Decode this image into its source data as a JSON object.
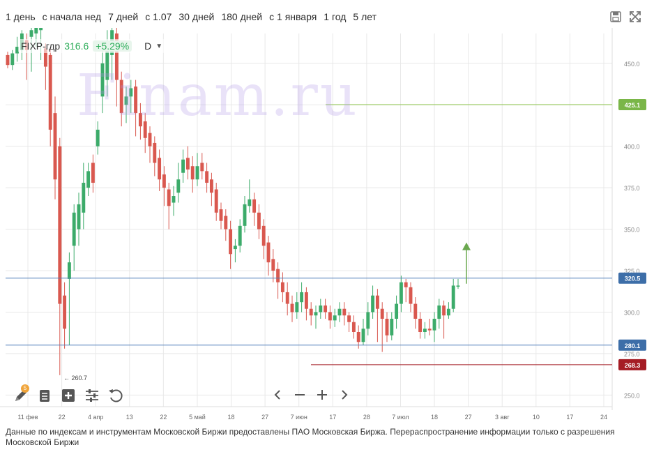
{
  "periods": [
    "1 день",
    "с начала нед",
    "7 дней",
    "с 1.07",
    "30 дней",
    "180 дней",
    "с 1 января",
    "1 год",
    "5 лет"
  ],
  "legend": {
    "symbol": "FIXP-гдр",
    "price": "316.6",
    "change": "+5.29%",
    "timeframe": "D"
  },
  "watermark": "Finam.ru",
  "footer": "Данные по индексам и инструментам Московской Биржи предоставлены ПАО Московская Биржа. Перераспространение информации только с разрешения Московской Биржи",
  "colors": {
    "up": "#3cab6a",
    "down": "#d9584f",
    "grid": "#e8e8e8",
    "hline_blue": "#4f7cb8",
    "hline_green": "#8bc34a",
    "hline_red": "#a51c24",
    "arrow": "#6aa84f"
  },
  "icons": {
    "save": "floppy-disk-icon",
    "expand": "fullscreen-icon",
    "pencil": "pencil-icon",
    "list": "list-icon",
    "add": "add-indicator-icon",
    "settings": "sliders-icon",
    "reset": "undo-icon",
    "prev": "chevron-left-icon",
    "zoom_out": "minus-icon",
    "zoom_in": "plus-icon",
    "next": "chevron-right-icon"
  },
  "tool_badge": "5",
  "chart_data": {
    "type": "candlestick",
    "ylim": [
      243,
      468
    ],
    "y_ticks": [
      "250.0",
      "275.0",
      "300.0",
      "325.0",
      "350.0",
      "375.0",
      "400.0",
      "425.0",
      "450.0"
    ],
    "x_ticks": [
      "11 фев",
      "22",
      "4 апр",
      "13",
      "22",
      "5 май",
      "18",
      "27",
      "7 июн",
      "17",
      "28",
      "7 июл",
      "18",
      "27",
      "3 авг",
      "10",
      "17",
      "24"
    ],
    "price_lines": [
      {
        "value": 425.1,
        "label": "425.1",
        "style": "green"
      },
      {
        "value": 320.5,
        "label": "320.5",
        "style": "blue"
      },
      {
        "value": 280.1,
        "label": "280.1",
        "style": "blue"
      },
      {
        "value": 268.3,
        "label": "268.3",
        "style": "red"
      }
    ],
    "low_annotation": {
      "value": 260.7,
      "label": "← 260.7"
    },
    "candles": [
      [
        455,
        449,
        457,
        447
      ],
      [
        449,
        456,
        458,
        446
      ],
      [
        456,
        460,
        466,
        451
      ],
      [
        458,
        468,
        470,
        452
      ],
      [
        464,
        458,
        468,
        440
      ],
      [
        466,
        470,
        475,
        445
      ],
      [
        468,
        474,
        480,
        460
      ],
      [
        470,
        475,
        478,
        452
      ],
      [
        459,
        448,
        462,
        434
      ],
      [
        455,
        410,
        460,
        400
      ],
      [
        420,
        380,
        430,
        368
      ],
      [
        400,
        305,
        405,
        262
      ],
      [
        310,
        290,
        318,
        278
      ],
      [
        320,
        330,
        336,
        280
      ],
      [
        340,
        360,
        365,
        325
      ],
      [
        350,
        365,
        372,
        340
      ],
      [
        360,
        378,
        390,
        350
      ],
      [
        375,
        385,
        390,
        370
      ],
      [
        390,
        378,
        395,
        372
      ],
      [
        400,
        410,
        415,
        395
      ],
      [
        430,
        450,
        460,
        420
      ],
      [
        440,
        460,
        470,
        430
      ],
      [
        455,
        470,
        480,
        440
      ],
      [
        468,
        440,
        472,
        424
      ],
      [
        440,
        420,
        445,
        412
      ],
      [
        425,
        430,
        436,
        414
      ],
      [
        430,
        435,
        440,
        420
      ],
      [
        436,
        420,
        440,
        406
      ],
      [
        420,
        412,
        426,
        404
      ],
      [
        415,
        405,
        420,
        396
      ],
      [
        408,
        400,
        412,
        390
      ],
      [
        402,
        390,
        406,
        382
      ],
      [
        393,
        380,
        398,
        373
      ],
      [
        383,
        375,
        388,
        364
      ],
      [
        374,
        364,
        378,
        350
      ],
      [
        366,
        370,
        376,
        358
      ],
      [
        372,
        380,
        390,
        366
      ],
      [
        384,
        392,
        398,
        378
      ],
      [
        393,
        386,
        400,
        380
      ],
      [
        388,
        380,
        394,
        372
      ],
      [
        380,
        388,
        396,
        376
      ],
      [
        390,
        385,
        396,
        380
      ],
      [
        385,
        378,
        390,
        372
      ],
      [
        380,
        372,
        384,
        364
      ],
      [
        374,
        360,
        378,
        355
      ],
      [
        362,
        355,
        366,
        350
      ],
      [
        358,
        350,
        362,
        343
      ],
      [
        350,
        335,
        355,
        326
      ],
      [
        338,
        340,
        344,
        330
      ],
      [
        340,
        352,
        356,
        336
      ],
      [
        352,
        365,
        370,
        348
      ],
      [
        364,
        368,
        380,
        360
      ],
      [
        368,
        360,
        372,
        352
      ],
      [
        360,
        350,
        365,
        344
      ],
      [
        352,
        340,
        356,
        332
      ],
      [
        342,
        330,
        346,
        322
      ],
      [
        332,
        325,
        338,
        318
      ],
      [
        326,
        318,
        330,
        308
      ],
      [
        318,
        312,
        324,
        306
      ],
      [
        312,
        305,
        318,
        298
      ],
      [
        305,
        300,
        310,
        294
      ],
      [
        300,
        306,
        312,
        296
      ],
      [
        306,
        312,
        318,
        300
      ],
      [
        312,
        302,
        315,
        295
      ],
      [
        302,
        298,
        306,
        292
      ],
      [
        298,
        300,
        304,
        290
      ],
      [
        300,
        304,
        308,
        296
      ],
      [
        304,
        300,
        308,
        296
      ],
      [
        300,
        295,
        304,
        290
      ],
      [
        295,
        298,
        302,
        291
      ],
      [
        298,
        302,
        306,
        294
      ],
      [
        302,
        298,
        306,
        292
      ],
      [
        298,
        294,
        300,
        288
      ],
      [
        294,
        288,
        298,
        284
      ],
      [
        288,
        282,
        292,
        278
      ],
      [
        282,
        290,
        296,
        280
      ],
      [
        290,
        300,
        306,
        286
      ],
      [
        300,
        310,
        316,
        296
      ],
      [
        310,
        302,
        314,
        282
      ],
      [
        302,
        296,
        306,
        276
      ],
      [
        296,
        286,
        300,
        282
      ],
      [
        286,
        296,
        300,
        283
      ],
      [
        296,
        305,
        310,
        290
      ],
      [
        305,
        318,
        322,
        300
      ],
      [
        318,
        315,
        320,
        306
      ],
      [
        315,
        305,
        318,
        300
      ],
      [
        305,
        296,
        309,
        290
      ],
      [
        296,
        288,
        300,
        284
      ],
      [
        288,
        290,
        294,
        284
      ],
      [
        290,
        289,
        296,
        286
      ],
      [
        289,
        296,
        300,
        282
      ],
      [
        296,
        304,
        308,
        290
      ],
      [
        304,
        298,
        307,
        284
      ],
      [
        298,
        302,
        306,
        296
      ],
      [
        302,
        316,
        320,
        300
      ],
      [
        316,
        316,
        320,
        314
      ]
    ]
  }
}
